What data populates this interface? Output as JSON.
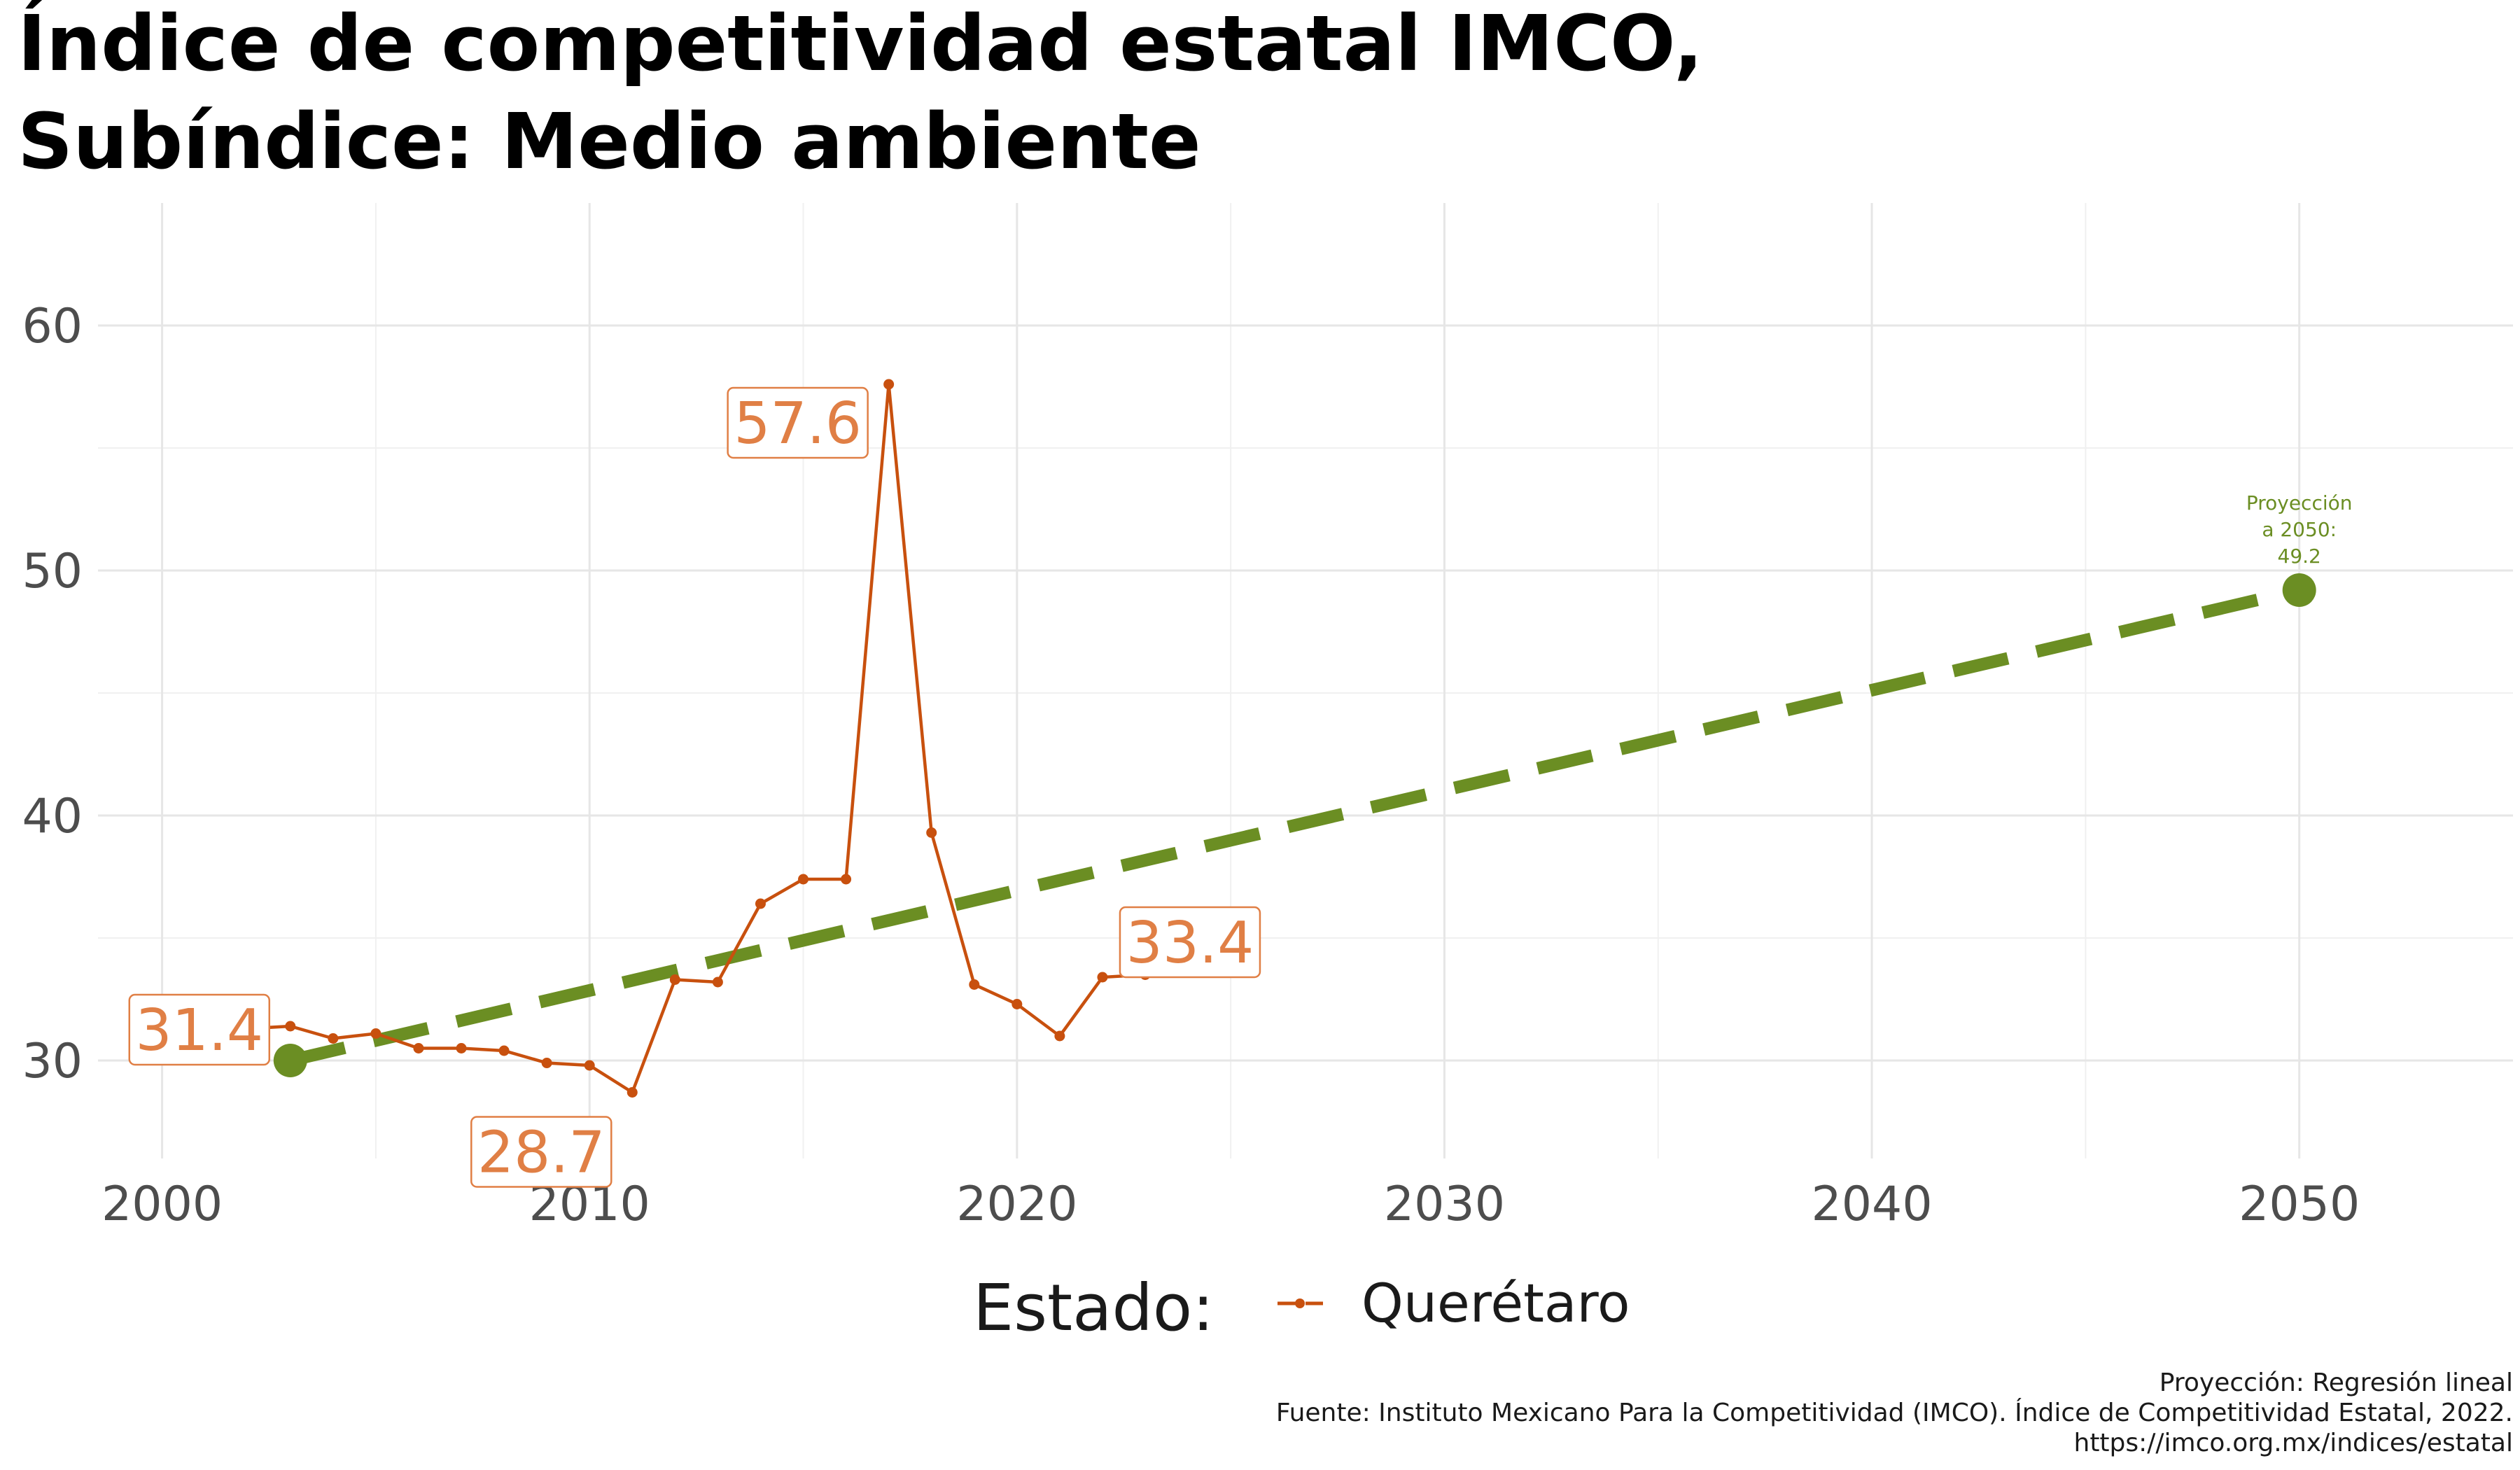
{
  "chart_data": {
    "type": "line",
    "title_line1": "Índice de competitividad estatal IMCO,",
    "title_line2": "Subíndice: Medio ambiente",
    "xlabel": "",
    "ylabel": "",
    "xlim": [
      1998.5,
      2055
    ],
    "ylim": [
      26,
      65
    ],
    "x_ticks": [
      2000,
      2010,
      2020,
      2030,
      2040,
      2050
    ],
    "y_ticks": [
      30,
      40,
      50,
      60
    ],
    "grid": true,
    "series": [
      {
        "name": "Querétaro",
        "color": "#c8500e",
        "x": [
          2001,
          2002,
          2003,
          2004,
          2005,
          2006,
          2007,
          2008,
          2009,
          2010,
          2011,
          2012,
          2013,
          2014,
          2015,
          2016,
          2017,
          2018,
          2019,
          2020,
          2021,
          2022,
          2023
        ],
        "y": [
          31.2,
          31.3,
          31.4,
          30.9,
          31.1,
          30.5,
          30.5,
          30.4,
          29.9,
          29.8,
          28.7,
          33.3,
          33.2,
          36.4,
          37.4,
          37.4,
          57.6,
          39.3,
          33.1,
          32.3,
          31.0,
          33.4,
          33.5
        ]
      }
    ],
    "projection": {
      "method": "Regresión lineal",
      "color": "#6b8e23",
      "start": {
        "x": 2003,
        "y": 30.0
      },
      "end": {
        "x": 2050,
        "y": 49.2
      },
      "annotation": [
        "Proyección",
        "a 2050:",
        "49.2"
      ]
    },
    "data_labels": [
      {
        "x": 2003,
        "y": 31.4,
        "text": "31.4"
      },
      {
        "x": 2011,
        "y": 28.7,
        "text": "28.7"
      },
      {
        "x": 2017,
        "y": 57.6,
        "text": "57.6"
      },
      {
        "x": 2022,
        "y": 33.4,
        "text": "33.4"
      }
    ],
    "legend": {
      "title": "Estado:",
      "label": "Querétaro",
      "placement": "bottom"
    }
  },
  "caption": {
    "line1": "Proyección: Regresión lineal",
    "line2": "Fuente: Instituto Mexicano Para la Competitividad (IMCO). Índice de Competitividad Estatal, 2022.",
    "line3": "https://imco.org.mx/indices/estatal"
  }
}
